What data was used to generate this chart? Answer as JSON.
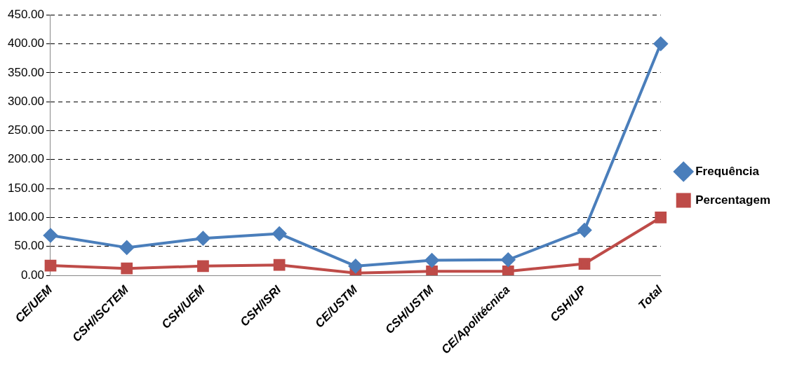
{
  "chart_data": {
    "type": "line",
    "categories": [
      "CE/UEM",
      "CSH/ISCTEM",
      "CSH/UEM",
      "CSH/ISRI",
      "CE/USTM",
      "CSH/USTM",
      "CE/Apolitécnica",
      "CSH/UP",
      "Total"
    ],
    "series": [
      {
        "name": "Frequência",
        "color": "#4a7ebb",
        "marker": "diamond",
        "values": [
          69,
          48,
          64,
          72,
          16,
          26,
          27,
          78,
          400
        ]
      },
      {
        "name": "Percentagem",
        "color": "#be4b48",
        "marker": "square",
        "values": [
          17,
          12,
          16,
          18,
          4,
          7,
          7,
          20,
          100
        ]
      }
    ],
    "ylim": [
      0,
      450
    ],
    "yticks": [
      {
        "value": 0,
        "label": "0.00"
      },
      {
        "value": 50,
        "label": "50.00"
      },
      {
        "value": 100,
        "label": "100.00"
      },
      {
        "value": 150,
        "label": "150.00"
      },
      {
        "value": 200,
        "label": "200.00"
      },
      {
        "value": 250,
        "label": "250.00"
      },
      {
        "value": 300,
        "label": "300.00"
      },
      {
        "value": 350,
        "label": "350.00"
      },
      {
        "value": 400,
        "label": "400.00"
      },
      {
        "value": 450,
        "label": "450.00"
      }
    ],
    "grid": "y",
    "legend": "right",
    "line_style": "solid"
  }
}
